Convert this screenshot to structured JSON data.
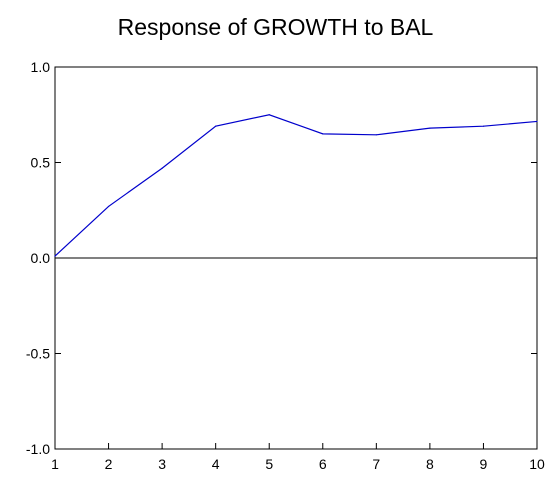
{
  "chart_data": {
    "type": "line",
    "title": "Response of GROWTH to BAL",
    "xlabel": "",
    "ylabel": "",
    "x": [
      1,
      2,
      3,
      4,
      5,
      6,
      7,
      8,
      9,
      10
    ],
    "x_tick_labels": [
      "1",
      "2",
      "3",
      "4",
      "5",
      "6",
      "7",
      "8",
      "9",
      "10"
    ],
    "y_tick_labels": [
      "1.0",
      "0.5",
      "0.0",
      "-0.5",
      "-1.0"
    ],
    "y_ticks": [
      1.0,
      0.5,
      0.0,
      -0.5,
      -1.0
    ],
    "xlim": [
      1,
      10
    ],
    "ylim": [
      -1.0,
      1.0
    ],
    "grid": false,
    "zero_line": true,
    "series": [
      {
        "color": "#0000cc",
        "values": [
          0.01,
          0.27,
          0.47,
          0.69,
          0.75,
          0.65,
          0.645,
          0.68,
          0.69,
          0.715
        ]
      }
    ]
  }
}
